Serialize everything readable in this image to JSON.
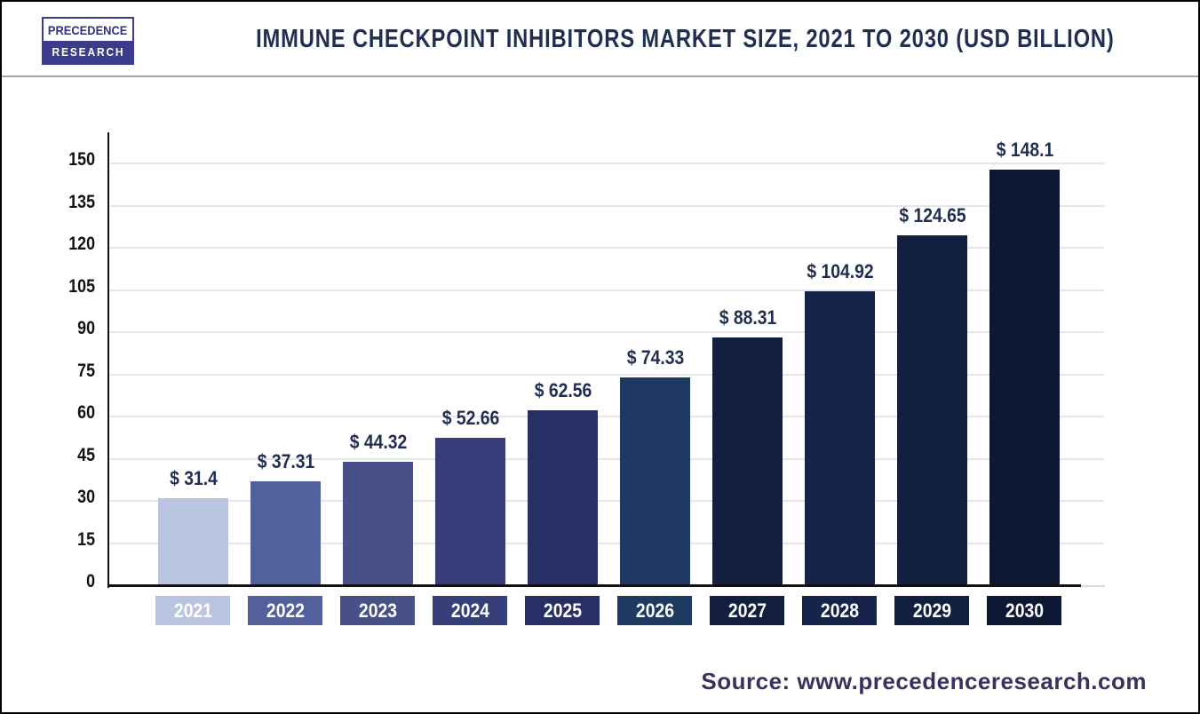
{
  "header": {
    "logo": {
      "line1": "PRECEDENCE",
      "line2": "RESEARCH"
    },
    "title": "IMMUNE CHECKPOINT INHIBITORS MARKET SIZE, 2021 TO 2030 (USD BILLION)"
  },
  "chart_data": {
    "type": "bar",
    "title": "Immune Checkpoint Inhibitors Market Size, 2021 to 2030 (USD Billion)",
    "categories": [
      "2021",
      "2022",
      "2023",
      "2024",
      "2025",
      "2026",
      "2027",
      "2028",
      "2029",
      "2030"
    ],
    "values": [
      31.4,
      37.31,
      44.32,
      52.66,
      62.56,
      74.33,
      88.31,
      104.92,
      124.65,
      148.1
    ],
    "value_labels": [
      "$ 31.4",
      "$ 37.31",
      "$ 44.32",
      "$ 52.66",
      "$ 62.56",
      "$ 74.33",
      "$ 88.31",
      "$ 104.92",
      "$ 124.65",
      "$ 148.1"
    ],
    "bar_colors": [
      "#b9c4e1",
      "#52609b",
      "#475187",
      "#363f79",
      "#282f64",
      "#1e3a62",
      "#121f3e",
      "#16234a",
      "#12203f",
      "#0d1834"
    ],
    "xlabel": "",
    "ylabel": "",
    "ylim": [
      0,
      150
    ],
    "yticks": [
      0,
      15,
      30,
      45,
      60,
      75,
      90,
      105,
      120,
      135,
      150
    ],
    "grid": true,
    "legend": false
  },
  "footer": {
    "source": "Source: www.precedenceresearch.com"
  },
  "colors": {
    "title_text": "#1f2e52",
    "value_label_text": "#1f2e52",
    "tick_text": "#111111",
    "axis_line": "#111111",
    "gridline": "#e6e6e8",
    "year_text": "#ffffff",
    "source_text": "#34345f",
    "logo_navy": "#3c3c8d",
    "frame_border": "#000000",
    "header_divider": "#a6a6a6"
  }
}
